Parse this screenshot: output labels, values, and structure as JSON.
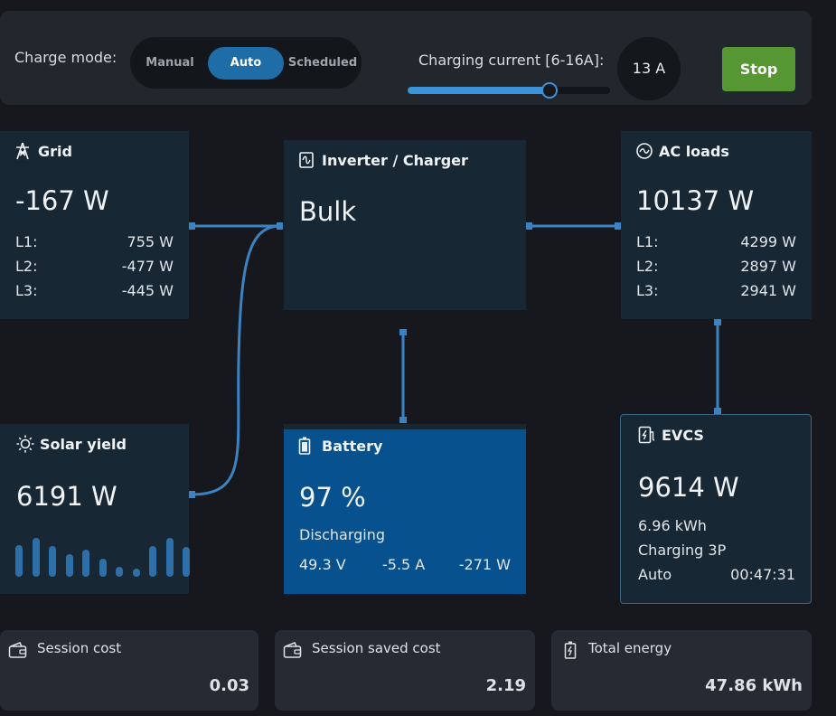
{
  "controls": {
    "charge_mode_label": "Charge mode:",
    "modes": [
      {
        "label": "Manual",
        "active": false
      },
      {
        "label": "Auto",
        "active": true
      },
      {
        "label": "Scheduled",
        "active": false
      }
    ],
    "current_label": "Charging current [6-16A]:",
    "current_value": "13 A",
    "current_fraction": 0.7,
    "stop_label": "Stop"
  },
  "grid": {
    "icon": "power-tower-icon",
    "title": "Grid",
    "power": "-167 W",
    "phases": [
      {
        "label": "L1:",
        "value": "755 W"
      },
      {
        "label": "L2:",
        "value": "-477 W"
      },
      {
        "label": "L3:",
        "value": "-445 W"
      }
    ]
  },
  "inverter": {
    "icon": "inverter-icon",
    "title": "Inverter / Charger",
    "state": "Bulk"
  },
  "ac_loads": {
    "icon": "ac-sine-icon",
    "title": "AC loads",
    "power": "10137 W",
    "phases": [
      {
        "label": "L1:",
        "value": "4299 W"
      },
      {
        "label": "L2:",
        "value": "2897 W"
      },
      {
        "label": "L3:",
        "value": "2941 W"
      }
    ]
  },
  "solar": {
    "icon": "sun-icon",
    "title": "Solar yield",
    "power": "6191 W",
    "history_bars": [
      0.7,
      0.85,
      0.68,
      0.5,
      0.6,
      0.4,
      0.22,
      0.18,
      0.68,
      0.85,
      0.65
    ]
  },
  "battery": {
    "icon": "battery-icon",
    "title": "Battery",
    "soc": "97 %",
    "state": "Discharging",
    "voltage": "49.3 V",
    "current": "-5.5 A",
    "power": "-271 W"
  },
  "evcs": {
    "icon": "ev-charger-icon",
    "title": "EVCS",
    "power": "9614 W",
    "energy": "6.96 kWh",
    "status": "Charging 3P",
    "mode": "Auto",
    "time": "00:47:31"
  },
  "cards": [
    {
      "icon": "wallet-icon",
      "title": "Session cost",
      "value": "0.03"
    },
    {
      "icon": "wallet-icon",
      "title": "Session saved cost",
      "value": "2.19"
    },
    {
      "icon": "battery-charge-icon",
      "title": "Total energy",
      "value": "47.86 kWh"
    }
  ],
  "colors": {
    "background": "#16181d",
    "panel": "#172734",
    "battery_panel": "#08518f",
    "accent": "#1f6da7",
    "connector": "#3c83c4",
    "stop_button": "#569733"
  }
}
